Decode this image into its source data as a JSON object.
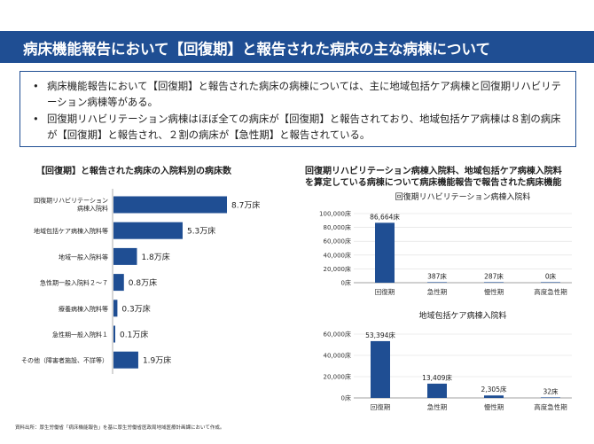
{
  "header": {
    "title": "病床機能報告において【回復期】と報告された病床の主な病棟について"
  },
  "bullets": [
    "病床機能報告において【回復期】と報告された病床の病棟については、主に地域包括ケア病棟と回復期リハビリテーション病棟等がある。",
    "回復期リハビリテーション病棟はほぼ全ての病床が【回復期】と報告されており、地域包括ケア病棟は８割の病床が【回復期】と報告され、２割の病床が【急性期】と報告されている。"
  ],
  "source": "資料出所：厚生労働省「病床機能報告」を基に厚生労働省医政局地域医療計画課において作成。",
  "accent_color": "#1f4e93",
  "chart_data": [
    {
      "type": "bar",
      "orientation": "horizontal",
      "title": "【回復期】と報告された病床の入院料別の病床数",
      "categories": [
        "回復期リハビリテーション病棟入院料",
        "地域包括ケア病棟入院料等",
        "地域一般入院料等",
        "急性期一般入院料２～７",
        "療養病棟入院料等",
        "急性期一般入院料１",
        "その他（障害者施設、不詳等）"
      ],
      "category_lines": [
        [
          "回復期リハビリテーション",
          "病棟入院料"
        ],
        [
          "地域包括ケア病棟入院料等"
        ],
        [
          "地域一般入院料等"
        ],
        [
          "急性期一般入院料２～７"
        ],
        [
          "療養病棟入院料等"
        ],
        [
          "急性期一般入院料１"
        ],
        [
          "その他（障害者施設、不詳等）"
        ]
      ],
      "values": [
        8.7,
        5.3,
        1.8,
        0.8,
        0.3,
        0.1,
        1.9
      ],
      "value_labels": [
        "8.7万床",
        "5.3万床",
        "1.8万床",
        "0.8万床",
        "0.3万床",
        "0.1万床",
        "1.9万床"
      ],
      "unit": "万床"
    },
    {
      "type": "bar",
      "group_title": [
        "回復期リハビリテーション病棟入院料、地域包括ケア病棟入院料",
        "を算定している病棟について病床機能報告で報告された病床機能"
      ],
      "title": "回復期リハビリテーション病棟入院料",
      "categories": [
        "回復期",
        "急性期",
        "慢性期",
        "高度急性期"
      ],
      "values": [
        86664,
        387,
        287,
        0
      ],
      "value_labels": [
        "86,664床",
        "387床",
        "287床",
        "0床"
      ],
      "ylim": [
        0,
        100000
      ],
      "yticks": [
        0,
        20000,
        40000,
        60000,
        80000,
        100000
      ],
      "ytick_labels": [
        "0床",
        "20,000床",
        "40,000床",
        "60,000床",
        "80,000床",
        "100,000床"
      ]
    },
    {
      "type": "bar",
      "title": "地域包括ケア病棟入院料",
      "categories": [
        "回復期",
        "急性期",
        "慢性期",
        "高度急性期"
      ],
      "values": [
        53394,
        13409,
        2305,
        32
      ],
      "value_labels": [
        "53,394床",
        "13,409床",
        "2,305床",
        "32床"
      ],
      "ylim": [
        0,
        60000
      ],
      "yticks": [
        0,
        20000,
        40000,
        60000
      ],
      "ytick_labels": [
        "0床",
        "20,000床",
        "40,000床",
        "60,000床"
      ]
    }
  ]
}
